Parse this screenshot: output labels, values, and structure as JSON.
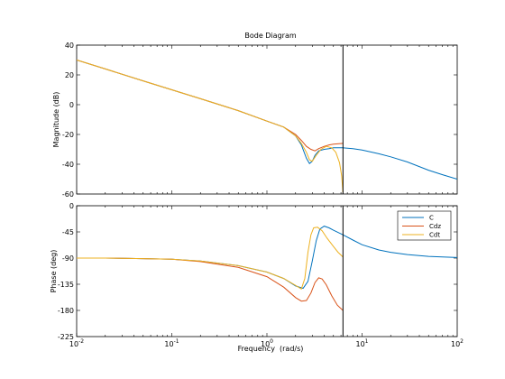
{
  "colors": {
    "C": "#0072BD",
    "Cdz": "#D95319",
    "Cdt": "#EDB120",
    "axis": "#000000",
    "background": "#ffffff"
  },
  "chart_data": {
    "type": "line",
    "title": "Bode Diagram",
    "xlabel": "Frequency  (rad/s)",
    "xscale": "log",
    "xlim": [
      0.01,
      100
    ],
    "x_tick_labels": [
      {
        "value": 0.01,
        "base": "10",
        "exp": "-2"
      },
      {
        "value": 0.1,
        "base": "10",
        "exp": "-1"
      },
      {
        "value": 1,
        "base": "10",
        "exp": "0"
      },
      {
        "value": 10,
        "base": "10",
        "exp": "1"
      },
      {
        "value": 100,
        "base": "10",
        "exp": "2"
      }
    ],
    "vertical_marker_x": 6.3,
    "grid": false,
    "legend": {
      "placement": "top-right",
      "panel": "phase",
      "entries": [
        "C",
        "Cdz",
        "Cdt"
      ]
    },
    "panels": [
      {
        "id": "magnitude",
        "ylabel": "Magnitude  (dB)",
        "ylim": [
          -60,
          40
        ],
        "yticks": [
          40,
          20,
          0,
          -20,
          -40,
          -60
        ],
        "series": [
          {
            "name": "C",
            "x": [
              0.01,
              0.02,
              0.05,
              0.1,
              0.2,
              0.5,
              1.0,
              1.5,
              2.0,
              2.3,
              2.6,
              2.8,
              3.0,
              3.2,
              3.5,
              4.0,
              4.5,
              5.0,
              6.3,
              8,
              10,
              15,
              20,
              30,
              50,
              70,
              100
            ],
            "y": [
              30,
              24,
              16,
              10,
              4,
              -4,
              -11,
              -15,
              -21,
              -27,
              -36,
              -39.5,
              -38,
              -34,
              -31,
              -30,
              -29.5,
              -29,
              -29,
              -29.5,
              -30.5,
              -33,
              -35,
              -38.5,
              -44,
              -47,
              -50
            ]
          },
          {
            "name": "Cdz",
            "x": [
              0.01,
              0.02,
              0.05,
              0.1,
              0.2,
              0.5,
              1.0,
              1.5,
              2.0,
              2.3,
              2.6,
              2.9,
              3.2,
              3.5,
              4.0,
              4.5,
              5.0,
              6.3
            ],
            "y": [
              30,
              24,
              16,
              10,
              4,
              -4,
              -11,
              -15,
              -20,
              -24,
              -28,
              -30,
              -31,
              -29.5,
              -28,
              -27,
              -26.5,
              -26
            ]
          },
          {
            "name": "Cdt",
            "x": [
              0.01,
              0.02,
              0.05,
              0.1,
              0.2,
              0.5,
              1.0,
              1.5,
              2.0,
              2.3,
              2.6,
              2.8,
              3.0,
              3.3,
              3.7,
              4.2,
              4.8,
              5.3,
              5.8,
              6.1,
              6.3
            ],
            "y": [
              30,
              24,
              16,
              10,
              4,
              -4,
              -11,
              -15,
              -21,
              -26,
              -32,
              -37,
              -38,
              -34,
              -30,
              -28,
              -29,
              -32,
              -39,
              -48,
              -59
            ]
          }
        ]
      },
      {
        "id": "phase",
        "ylabel": "Phase  (deg)",
        "ylim": [
          -225,
          0
        ],
        "yticks": [
          0,
          -45,
          -90,
          -135,
          -180,
          -225
        ],
        "series": [
          {
            "name": "C",
            "x": [
              0.01,
              0.02,
              0.05,
              0.1,
              0.2,
              0.5,
              1.0,
              1.5,
              2.0,
              2.4,
              2.7,
              3.0,
              3.3,
              3.6,
              4.0,
              4.5,
              5.0,
              6.3,
              8,
              10,
              15,
              20,
              30,
              50,
              70,
              100
            ],
            "y": [
              -90,
              -90,
              -91,
              -92,
              -95,
              -103,
              -114,
              -125,
              -138,
              -142,
              -130,
              -95,
              -60,
              -40,
              -35,
              -38,
              -42,
              -50,
              -59,
              -67,
              -76,
              -80,
              -84,
              -87,
              -88,
              -89
            ]
          },
          {
            "name": "Cdz",
            "x": [
              0.01,
              0.02,
              0.05,
              0.1,
              0.2,
              0.5,
              1.0,
              1.5,
              2.0,
              2.3,
              2.6,
              2.9,
              3.2,
              3.5,
              3.8,
              4.2,
              4.8,
              5.5,
              6.3
            ],
            "y": [
              -90,
              -90,
              -91,
              -92,
              -96,
              -106,
              -122,
              -140,
              -158,
              -164,
              -163,
              -150,
              -132,
              -124,
              -126,
              -136,
              -155,
              -171,
              -180
            ]
          },
          {
            "name": "Cdt",
            "x": [
              0.01,
              0.02,
              0.05,
              0.1,
              0.2,
              0.5,
              1.0,
              1.5,
              2.0,
              2.3,
              2.5,
              2.7,
              2.9,
              3.1,
              3.4,
              3.8,
              4.3,
              5.0,
              5.6,
              6.3
            ],
            "y": [
              -90,
              -90,
              -91,
              -92,
              -95,
              -103,
              -114,
              -125,
              -137,
              -143,
              -125,
              -80,
              -50,
              -38,
              -37,
              -43,
              -56,
              -70,
              -80,
              -88
            ]
          }
        ]
      }
    ]
  }
}
